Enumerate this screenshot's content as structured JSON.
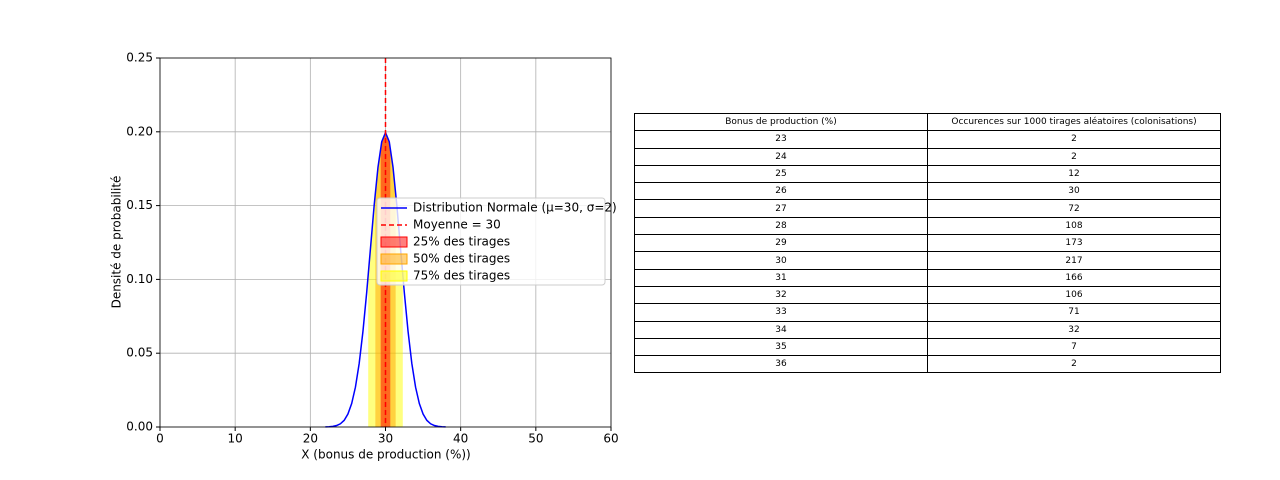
{
  "chart_data": {
    "type": "line",
    "xlabel": "X (bonus de production (%))",
    "ylabel": "Densité de probabilité",
    "x": [
      22,
      22.5,
      23,
      23.5,
      24,
      24.5,
      25,
      25.5,
      26,
      26.5,
      27,
      27.5,
      28,
      28.5,
      29,
      29.5,
      30,
      30.5,
      31,
      31.5,
      32,
      32.5,
      33,
      33.5,
      34,
      34.5,
      35,
      35.5,
      36,
      36.5,
      37,
      37.5,
      38
    ],
    "series": [
      {
        "name": "Distribution Normale (μ=30, σ=2)",
        "color": "#0000ff",
        "values": [
          0.0001,
          0.0002,
          0.0004,
          0.001,
          0.0022,
          0.0045,
          0.0088,
          0.0159,
          0.027,
          0.0431,
          0.0648,
          0.0913,
          0.121,
          0.1506,
          0.176,
          0.1933,
          0.1995,
          0.1933,
          0.176,
          0.1506,
          0.121,
          0.0913,
          0.0648,
          0.0431,
          0.027,
          0.0159,
          0.0088,
          0.0045,
          0.0022,
          0.001,
          0.0004,
          0.0002,
          0.0001
        ]
      }
    ],
    "vlines": [
      {
        "name": "Moyenne = 30",
        "x": 30,
        "color": "#ff0000"
      }
    ],
    "bands": [
      {
        "name": "25% des tirages",
        "color": "#ff0000",
        "range": [
          29.36,
          30.64
        ]
      },
      {
        "name": "50% des tirages",
        "color": "#ffa500",
        "range": [
          28.65,
          31.35
        ]
      },
      {
        "name": "75% des tirages",
        "color": "#ffff00",
        "range": [
          27.7,
          32.3
        ]
      }
    ],
    "xlim": [
      0,
      60
    ],
    "xticks": [
      0,
      10,
      20,
      30,
      40,
      50,
      60
    ],
    "ylim": [
      0,
      0.25
    ],
    "yticks": [
      {
        "value": 0,
        "label": "0.00"
      },
      0.05,
      {
        "value": 0.1,
        "label": "0.10"
      },
      0.15,
      {
        "value": 0.2,
        "label": "0.20"
      },
      0.25
    ],
    "grid": true,
    "legend": "center right"
  },
  "table": {
    "columns": [
      "Bonus de production (%)",
      "Occurences sur 1000 tirages aléatoires (colonisations)"
    ],
    "rows": [
      [
        23,
        2
      ],
      [
        24,
        2
      ],
      [
        25,
        12
      ],
      [
        26,
        30
      ],
      [
        27,
        72
      ],
      [
        28,
        108
      ],
      [
        29,
        173
      ],
      [
        30,
        217
      ],
      [
        31,
        166
      ],
      [
        32,
        106
      ],
      [
        33,
        71
      ],
      [
        34,
        32
      ],
      [
        35,
        7
      ],
      [
        36,
        2
      ]
    ]
  }
}
